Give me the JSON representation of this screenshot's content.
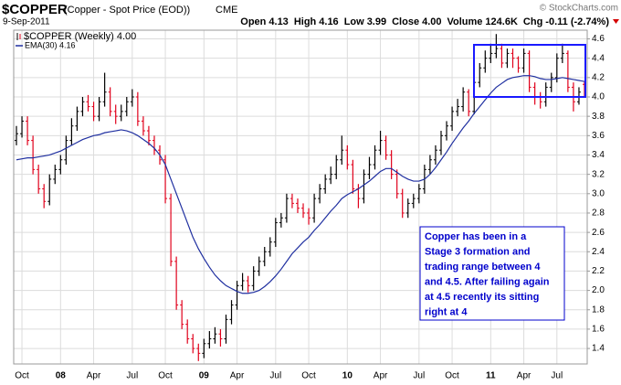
{
  "chart_data": {
    "type": "ohlc",
    "title": "$COPPER",
    "subtitle": "(Copper - Spot Price (EOD))",
    "exchange": "CME",
    "source": "© StockCharts.com",
    "date": "9-Sep-2011",
    "stats": [
      {
        "label": "Open",
        "text": "4.13"
      },
      {
        "label": "High",
        "text": "4.16"
      },
      {
        "label": "Low",
        "text": "3.99"
      },
      {
        "label": "Close",
        "text": "4.00"
      },
      {
        "label": "Volume",
        "text": "124.6K"
      },
      {
        "label": "Chg",
        "text": "-0.11 (-2.74%)"
      }
    ],
    "change_color": "#d40000",
    "annotation": {
      "lines": [
        "Copper has been in a",
        "Stage 3 formation and",
        "trading range between 4",
        "and 4.5.  After failing again",
        "at 4.5 recently its sitting",
        "right at 4"
      ],
      "color": "#0000cc"
    },
    "range_box_color": "#1a1aff",
    "categories": [
      null,
      "Oct",
      null,
      null,
      null,
      null,
      null,
      null,
      "08",
      null,
      null,
      null,
      null,
      null,
      "Apr",
      null,
      null,
      null,
      null,
      null,
      null,
      "Jul",
      null,
      null,
      null,
      null,
      null,
      "Oct",
      null,
      null,
      null,
      null,
      null,
      null,
      "09",
      null,
      null,
      null,
      null,
      null,
      "Apr",
      null,
      null,
      null,
      null,
      null,
      null,
      "Jul",
      null,
      null,
      null,
      null,
      null,
      "Oct",
      null,
      null,
      null,
      null,
      null,
      null,
      "10",
      null,
      null,
      null,
      null,
      null,
      "Apr",
      null,
      null,
      null,
      null,
      null,
      null,
      "Jul",
      null,
      null,
      null,
      null,
      null,
      "Oct",
      null,
      null,
      null,
      null,
      null,
      null,
      "11",
      null,
      null,
      null,
      null,
      null,
      "Apr",
      null,
      null,
      null,
      null,
      null,
      "Jul",
      null,
      null,
      null,
      null,
      null
    ],
    "series": [
      {
        "name": "$COPPER (Weekly) 4.00",
        "up_color": "#000000",
        "down_color": "#e0001b",
        "open": [
          3.55,
          3.62,
          3.75,
          3.55,
          3.25,
          3.05,
          2.92,
          3.15,
          3.25,
          3.35,
          3.55,
          3.7,
          3.85,
          3.95,
          3.9,
          3.8,
          3.95,
          4.05,
          3.85,
          3.8,
          3.85,
          3.95,
          4.0,
          3.75,
          3.65,
          3.55,
          3.45,
          3.35,
          2.95,
          2.3,
          1.85,
          1.65,
          1.5,
          1.4,
          1.35,
          1.45,
          1.5,
          1.55,
          1.5,
          1.7,
          1.85,
          2.05,
          2.1,
          2.05,
          2.2,
          2.3,
          2.4,
          2.5,
          2.7,
          2.75,
          2.95,
          2.9,
          2.85,
          2.8,
          2.75,
          2.95,
          3.05,
          3.15,
          3.2,
          3.35,
          3.45,
          3.3,
          3.05,
          2.95,
          3.2,
          3.3,
          3.45,
          3.55,
          3.4,
          3.2,
          3.0,
          2.8,
          2.9,
          2.95,
          3.05,
          3.25,
          3.35,
          3.45,
          3.6,
          3.7,
          3.85,
          3.9,
          4.05,
          3.85,
          4.15,
          4.3,
          4.4,
          4.45,
          4.5,
          4.35,
          4.45,
          4.4,
          4.3,
          4.45,
          4.1,
          4.0,
          3.95,
          4.1,
          4.2,
          4.4,
          4.45,
          4.1,
          3.95,
          4.13
        ],
        "high": [
          3.7,
          3.8,
          3.8,
          3.6,
          3.3,
          3.1,
          3.2,
          3.3,
          3.4,
          3.6,
          3.78,
          3.9,
          4.0,
          4.02,
          3.95,
          4.0,
          4.25,
          4.1,
          3.92,
          3.92,
          4.0,
          4.08,
          4.05,
          3.8,
          3.7,
          3.6,
          3.5,
          3.4,
          3.0,
          2.35,
          1.9,
          1.7,
          1.55,
          1.45,
          1.5,
          1.58,
          1.62,
          1.6,
          1.75,
          1.9,
          2.1,
          2.18,
          2.15,
          2.25,
          2.35,
          2.45,
          2.55,
          2.75,
          2.8,
          3.0,
          3.0,
          2.95,
          2.9,
          2.85,
          3.0,
          3.1,
          3.2,
          3.28,
          3.4,
          3.6,
          3.5,
          3.35,
          3.1,
          3.25,
          3.38,
          3.5,
          3.65,
          3.6,
          3.45,
          3.25,
          3.05,
          2.95,
          3.0,
          3.1,
          3.3,
          3.4,
          3.5,
          3.65,
          3.75,
          3.9,
          3.98,
          4.1,
          4.08,
          4.2,
          4.35,
          4.48,
          4.55,
          4.65,
          4.55,
          4.5,
          4.5,
          4.42,
          4.5,
          4.48,
          4.15,
          4.05,
          4.15,
          4.25,
          4.45,
          4.55,
          4.48,
          4.15,
          4.1,
          4.16
        ],
        "low": [
          3.5,
          3.58,
          3.5,
          3.2,
          3.0,
          2.85,
          2.88,
          3.1,
          3.2,
          3.3,
          3.5,
          3.65,
          3.8,
          3.85,
          3.75,
          3.75,
          3.9,
          3.8,
          3.72,
          3.75,
          3.8,
          3.9,
          3.7,
          3.6,
          3.5,
          3.4,
          3.3,
          2.9,
          2.25,
          1.8,
          1.6,
          1.45,
          1.35,
          1.27,
          1.3,
          1.4,
          1.45,
          1.42,
          1.45,
          1.65,
          1.8,
          2.0,
          1.98,
          2.0,
          2.15,
          2.25,
          2.35,
          2.45,
          2.65,
          2.7,
          2.85,
          2.8,
          2.75,
          2.68,
          2.7,
          2.9,
          3.0,
          3.1,
          3.15,
          3.3,
          3.25,
          3.0,
          2.85,
          2.9,
          3.15,
          3.25,
          3.4,
          3.35,
          3.15,
          2.95,
          2.75,
          2.75,
          2.85,
          2.9,
          3.0,
          3.2,
          3.3,
          3.4,
          3.55,
          3.65,
          3.8,
          3.85,
          3.8,
          3.82,
          4.1,
          4.25,
          4.35,
          4.4,
          4.3,
          4.3,
          4.3,
          4.25,
          4.25,
          4.05,
          3.92,
          3.88,
          3.9,
          4.05,
          4.15,
          4.35,
          4.05,
          3.85,
          3.92,
          3.99
        ],
        "close": [
          3.62,
          3.75,
          3.55,
          3.25,
          3.05,
          2.92,
          3.15,
          3.25,
          3.35,
          3.55,
          3.7,
          3.85,
          3.95,
          3.9,
          3.8,
          3.95,
          4.05,
          3.85,
          3.8,
          3.85,
          3.95,
          4.0,
          3.75,
          3.65,
          3.55,
          3.45,
          3.35,
          2.95,
          2.3,
          1.85,
          1.65,
          1.5,
          1.4,
          1.35,
          1.45,
          1.5,
          1.55,
          1.5,
          1.7,
          1.85,
          2.05,
          2.1,
          2.05,
          2.2,
          2.3,
          2.4,
          2.5,
          2.7,
          2.75,
          2.95,
          2.9,
          2.85,
          2.8,
          2.75,
          2.95,
          3.05,
          3.15,
          3.2,
          3.35,
          3.45,
          3.3,
          3.05,
          2.95,
          3.2,
          3.3,
          3.45,
          3.55,
          3.4,
          3.2,
          3.0,
          2.8,
          2.9,
          2.95,
          3.05,
          3.25,
          3.35,
          3.45,
          3.6,
          3.7,
          3.85,
          3.9,
          4.05,
          3.85,
          4.15,
          4.3,
          4.4,
          4.45,
          4.5,
          4.35,
          4.45,
          4.4,
          4.3,
          4.45,
          4.1,
          4.0,
          3.95,
          4.1,
          4.2,
          4.4,
          4.45,
          4.1,
          3.95,
          4.05,
          4.0
        ]
      },
      {
        "name": "EMA(30) 4.16",
        "color": "#1f2fa0",
        "values": [
          3.35,
          3.36,
          3.37,
          3.37,
          3.38,
          3.39,
          3.4,
          3.42,
          3.44,
          3.47,
          3.5,
          3.53,
          3.56,
          3.58,
          3.6,
          3.61,
          3.63,
          3.64,
          3.65,
          3.66,
          3.65,
          3.63,
          3.6,
          3.56,
          3.52,
          3.47,
          3.4,
          3.3,
          3.15,
          3.0,
          2.85,
          2.7,
          2.55,
          2.43,
          2.33,
          2.24,
          2.16,
          2.1,
          2.05,
          2.02,
          1.99,
          1.97,
          1.97,
          1.98,
          2.0,
          2.04,
          2.09,
          2.15,
          2.22,
          2.3,
          2.38,
          2.44,
          2.5,
          2.55,
          2.62,
          2.68,
          2.75,
          2.82,
          2.88,
          2.95,
          2.99,
          3.02,
          3.05,
          3.09,
          3.13,
          3.18,
          3.23,
          3.26,
          3.26,
          3.22,
          3.18,
          3.15,
          3.13,
          3.13,
          3.15,
          3.2,
          3.27,
          3.35,
          3.43,
          3.52,
          3.6,
          3.68,
          3.75,
          3.83,
          3.9,
          3.97,
          4.04,
          4.1,
          4.14,
          4.18,
          4.2,
          4.21,
          4.22,
          4.22,
          4.21,
          4.19,
          4.18,
          4.18,
          4.19,
          4.2,
          4.19,
          4.18,
          4.17,
          4.16
        ]
      }
    ],
    "ylim": [
      1.24,
      4.69
    ],
    "yticks": [
      1.4,
      1.6,
      1.8,
      {
        "value": 2,
        "label": "2.0"
      },
      2.2,
      2.4,
      2.6,
      2.8,
      {
        "value": 3,
        "label": "3.0"
      },
      3.2,
      3.4,
      3.6,
      3.8,
      {
        "value": 4,
        "label": "4.0"
      },
      4.2,
      4.4,
      4.6
    ],
    "grid": true
  }
}
